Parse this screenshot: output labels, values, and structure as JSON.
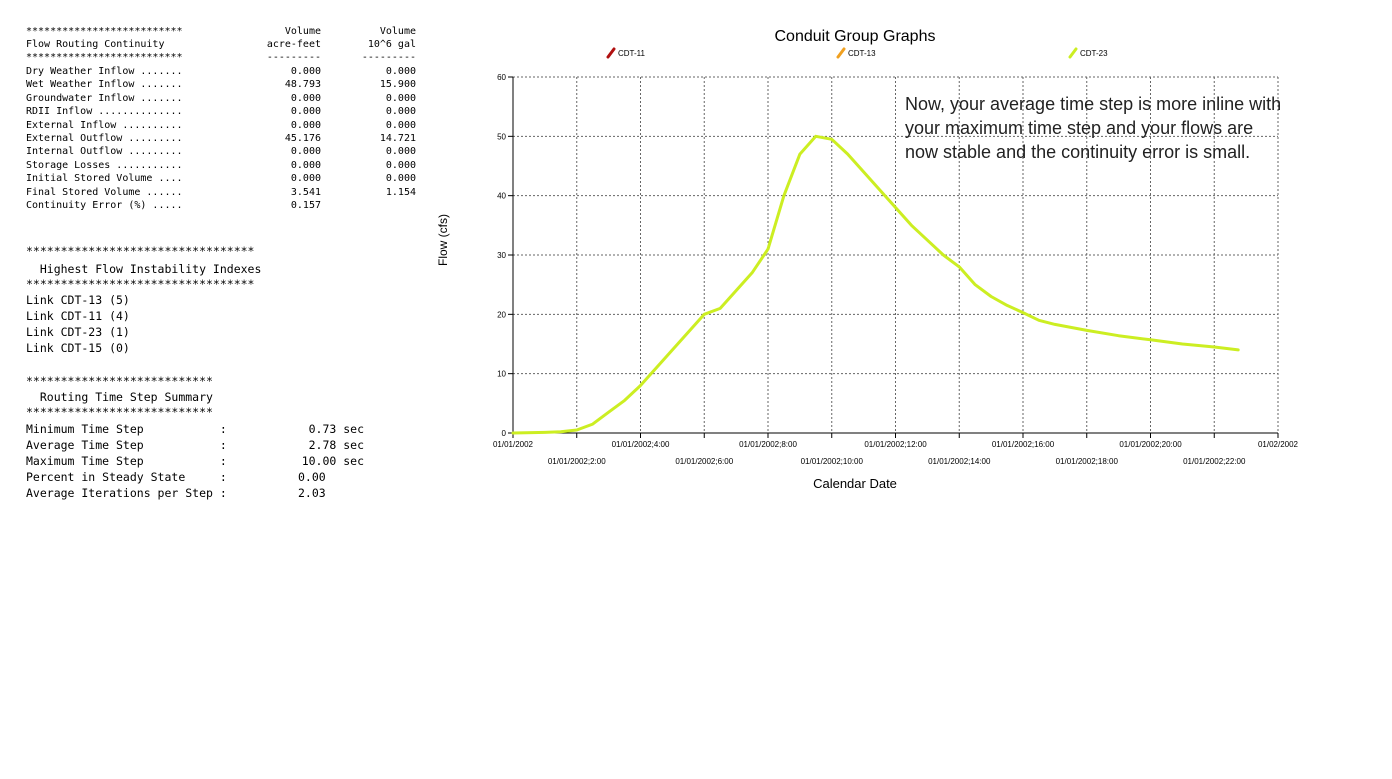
{
  "continuity": {
    "stars_top": "**************************",
    "title": "Flow Routing Continuity",
    "stars_bottom": "**************************",
    "col1_header": "Volume",
    "col1_unit": "acre-feet",
    "col1_dash": "---------",
    "col2_header": "Volume",
    "col2_unit": "10^6 gal",
    "col2_dash": "---------",
    "rows": [
      {
        "label": "Dry Weather Inflow .......",
        "v1": "0.000",
        "v2": "0.000"
      },
      {
        "label": "Wet Weather Inflow .......",
        "v1": "48.793",
        "v2": "15.900"
      },
      {
        "label": "Groundwater Inflow .......",
        "v1": "0.000",
        "v2": "0.000"
      },
      {
        "label": "RDII Inflow ..............",
        "v1": "0.000",
        "v2": "0.000"
      },
      {
        "label": "External Inflow ..........",
        "v1": "0.000",
        "v2": "0.000"
      },
      {
        "label": "External Outflow .........",
        "v1": "45.176",
        "v2": "14.721"
      },
      {
        "label": "Internal Outflow .........",
        "v1": "0.000",
        "v2": "0.000"
      },
      {
        "label": "Storage Losses ...........",
        "v1": "0.000",
        "v2": "0.000"
      },
      {
        "label": "Initial Stored Volume ....",
        "v1": "0.000",
        "v2": "0.000"
      },
      {
        "label": "Final Stored Volume ......",
        "v1": "3.541",
        "v2": "1.154"
      },
      {
        "label": "Continuity Error (%) .....",
        "v1": "0.157",
        "v2": ""
      }
    ]
  },
  "instability": {
    "stars_top": "*********************************",
    "title": "  Highest Flow Instability Indexes",
    "stars_bottom": "*********************************",
    "links": [
      "Link CDT-13 (5)",
      "Link CDT-11 (4)",
      "Link CDT-23 (1)",
      "Link CDT-15 (0)"
    ]
  },
  "timestep": {
    "stars_top": "***************************",
    "title": "  Routing Time Step Summary",
    "stars_bottom": "***************************",
    "rows": [
      {
        "label": "Minimum Time Step           :",
        "value": "0.73 sec"
      },
      {
        "label": "Average Time Step           :",
        "value": "2.78 sec"
      },
      {
        "label": "Maximum Time Step           :",
        "value": "10.00 sec"
      },
      {
        "label": "Percent in Steady State     :",
        "value": "0.00"
      },
      {
        "label": "Average Iterations per Step :",
        "value": "2.03"
      }
    ]
  },
  "note": "Now, your average time step is more inline with your maximum time step and your flows are now stable and the continuity error is small.",
  "chart_data": {
    "type": "line",
    "title": "Conduit Group Graphs",
    "xlabel": "Calendar Date",
    "ylabel": "Flow (cfs)",
    "ylim": [
      0,
      60
    ],
    "yticks": [
      0,
      10,
      20,
      30,
      40,
      50,
      60
    ],
    "xlim_hours": [
      0,
      24
    ],
    "xticks": [
      {
        "h": 0,
        "label": "01/01/2002"
      },
      {
        "h": 2,
        "label": "01/01/2002;2:00"
      },
      {
        "h": 4,
        "label": "01/01/2002;4:00"
      },
      {
        "h": 6,
        "label": "01/01/2002;6:00"
      },
      {
        "h": 8,
        "label": "01/01/2002;8:00"
      },
      {
        "h": 10,
        "label": "01/01/2002;10:00"
      },
      {
        "h": 12,
        "label": "01/01/2002;12:00"
      },
      {
        "h": 14,
        "label": "01/01/2002;14:00"
      },
      {
        "h": 16,
        "label": "01/01/2002;16:00"
      },
      {
        "h": 18,
        "label": "01/01/2002;18:00"
      },
      {
        "h": 20,
        "label": "01/01/2002;20:00"
      },
      {
        "h": 22,
        "label": "01/01/2002;22:00"
      },
      {
        "h": 24,
        "label": "01/02/2002"
      }
    ],
    "grid": true,
    "legend_position": "top",
    "series": [
      {
        "name": "CDT-11",
        "color": "#b01010",
        "points": []
      },
      {
        "name": "CDT-13",
        "color": "#f0a020",
        "points": []
      },
      {
        "name": "CDT-23",
        "color": "#ccee22",
        "points": [
          [
            0,
            0
          ],
          [
            1,
            0.1
          ],
          [
            1.5,
            0.2
          ],
          [
            2,
            0.5
          ],
          [
            2.5,
            1.5
          ],
          [
            3,
            3.5
          ],
          [
            3.5,
            5.5
          ],
          [
            4,
            8
          ],
          [
            4.5,
            11
          ],
          [
            5,
            14
          ],
          [
            5.5,
            17
          ],
          [
            6,
            20
          ],
          [
            6.5,
            21
          ],
          [
            7,
            24
          ],
          [
            7.5,
            27
          ],
          [
            8,
            31
          ],
          [
            8.5,
            40
          ],
          [
            9,
            47
          ],
          [
            9.5,
            50
          ],
          [
            10,
            49.5
          ],
          [
            10.5,
            47
          ],
          [
            11,
            44
          ],
          [
            11.5,
            41
          ],
          [
            12,
            38
          ],
          [
            12.5,
            35
          ],
          [
            13,
            32.5
          ],
          [
            13.5,
            30
          ],
          [
            14,
            28
          ],
          [
            14.5,
            25
          ],
          [
            15,
            23
          ],
          [
            15.5,
            21.5
          ],
          [
            16,
            20.3
          ],
          [
            16.5,
            19
          ],
          [
            17,
            18.3
          ],
          [
            18,
            17.3
          ],
          [
            19,
            16.4
          ],
          [
            20,
            15.7
          ],
          [
            21,
            15
          ],
          [
            22,
            14.5
          ],
          [
            22.75,
            14
          ]
        ]
      }
    ]
  }
}
